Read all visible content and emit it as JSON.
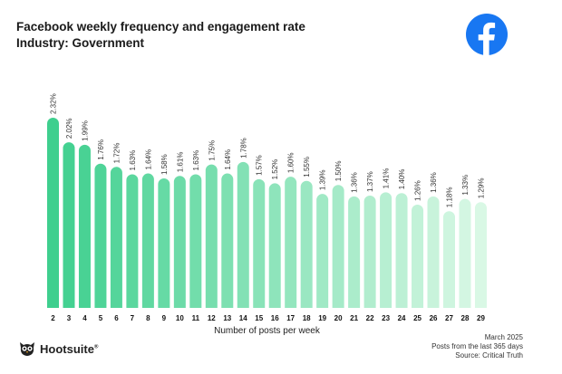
{
  "header": {
    "title": "Facebook weekly frequency and engagement rate",
    "subtitle": "Industry: Government"
  },
  "brand": {
    "facebook_icon": "facebook-icon",
    "facebook_color": "#1877f2",
    "hootsuite_name": "Hootsuite",
    "hootsuite_mark": "®"
  },
  "footer": {
    "date": "March 2025",
    "scope": "Posts from the last 365 days",
    "source": "Source: Critical Truth"
  },
  "chart_data": {
    "type": "bar",
    "title": "Facebook weekly frequency and engagement rate",
    "subtitle": "Industry: Government",
    "xlabel": "Number of posts per week",
    "ylabel": "",
    "categories": [
      "2",
      "3",
      "4",
      "5",
      "6",
      "7",
      "8",
      "9",
      "10",
      "11",
      "12",
      "13",
      "14",
      "15",
      "16",
      "17",
      "18",
      "19",
      "20",
      "21",
      "22",
      "23",
      "24",
      "25",
      "26",
      "27",
      "28",
      "29"
    ],
    "values": [
      2.32,
      2.02,
      1.99,
      1.76,
      1.72,
      1.63,
      1.64,
      1.58,
      1.61,
      1.63,
      1.75,
      1.64,
      1.78,
      1.57,
      1.52,
      1.6,
      1.55,
      1.39,
      1.5,
      1.36,
      1.37,
      1.41,
      1.4,
      1.26,
      1.36,
      1.18,
      1.33,
      1.29
    ],
    "value_labels": [
      "2.32%",
      "2.02%",
      "1.99%",
      "1.76%",
      "1.72%",
      "1.63%",
      "1.64%",
      "1.58%",
      "1.61%",
      "1.63%",
      "1.75%",
      "1.64%",
      "1.78%",
      "1.57%",
      "1.52%",
      "1.60%",
      "1.55%",
      "1.39%",
      "1.50%",
      "1.36%",
      "1.37%",
      "1.41%",
      "1.40%",
      "1.26%",
      "1.36%",
      "1.18%",
      "1.33%",
      "1.29%"
    ],
    "ylim": [
      0,
      2.32
    ],
    "grid": false,
    "legend": "none",
    "color_start": "#3ecf8e",
    "color_end": "#d9f8e5"
  }
}
